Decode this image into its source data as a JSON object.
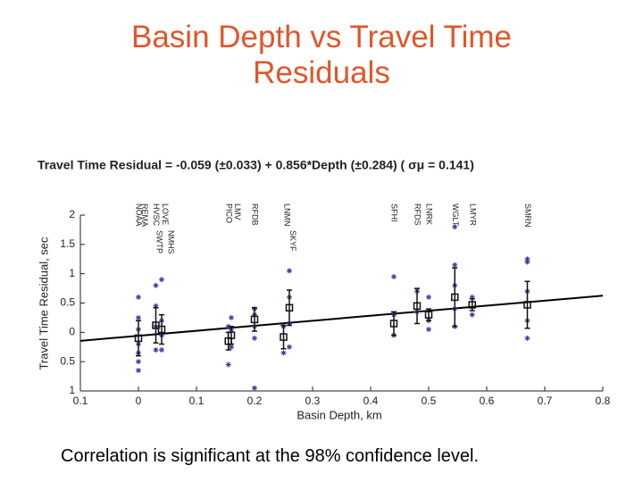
{
  "chart_data": {
    "type": "scatter",
    "title": [
      "Basin Depth vs Travel Time",
      "Residuals"
    ],
    "subtitle": "Travel Time Residual = -0.059 (±0.033) + 0.856*Depth (±0.284)  ( σμ = 0.141)",
    "xlabel": "Basin Depth, km",
    "ylabel": "Travel Time Residual, sec",
    "footnote": "Correlation is significant at the 98% confidence level.",
    "xlim": [
      -0.1,
      0.8
    ],
    "ylim": [
      -1,
      2
    ],
    "xticks": [
      {
        "value": -0.1,
        "label": "0.1"
      },
      0,
      0.1,
      0.2,
      0.3,
      0.4,
      0.5,
      0.6,
      0.7,
      0.8
    ],
    "yticks": [
      {
        "value": -1,
        "label": "1"
      },
      {
        "value": -0.5,
        "label": "0.5"
      },
      0,
      0.5,
      1,
      1.5,
      2
    ],
    "fit": {
      "intercept": -0.059,
      "slope": 0.856
    },
    "stations": [
      {
        "name": "NOAA",
        "x": 0
      },
      {
        "name": "HVSC",
        "x": 0.03
      },
      {
        "name": "REMA",
        "x": 0.01
      },
      {
        "name": "LOVE",
        "x": 0.045
      },
      {
        "name": "SWTP",
        "x": 0.035
      },
      {
        "name": "NMHS",
        "x": 0.055
      },
      {
        "name": "PICO",
        "x": 0.155
      },
      {
        "name": "LMV",
        "x": 0.17
      },
      {
        "name": "RFDB",
        "x": 0.2
      },
      {
        "name": "LNMN",
        "x": 0.255
      },
      {
        "name": "SKYF",
        "x": 0.265
      },
      {
        "name": "SFHI",
        "x": 0.44
      },
      {
        "name": "RFDS",
        "x": 0.48
      },
      {
        "name": "LNRK",
        "x": 0.5
      },
      {
        "name": "WGLT",
        "x": 0.545
      },
      {
        "name": "LMYR",
        "x": 0.575
      },
      {
        "name": "SMRN",
        "x": 0.67
      }
    ],
    "points": {
      "color": "#3a3aa0",
      "x": [
        0,
        0,
        0,
        0,
        0,
        0,
        0,
        0.03,
        0.03,
        0.03,
        0.03,
        0.04,
        0.04,
        0.04,
        0.04,
        0.155,
        0.155,
        0.16,
        0.16,
        0.16,
        0.2,
        0.2,
        0.2,
        0.2,
        0.2,
        0.25,
        0.25,
        0.26,
        0.26,
        0.26,
        0.26,
        0.44,
        0.44,
        0.44,
        0.48,
        0.48,
        0.5,
        0.5,
        0.5,
        0.545,
        0.545,
        0.545,
        0.545,
        0.545,
        0.575,
        0.575,
        0.67,
        0.67,
        0.67,
        0.67,
        0.67
      ],
      "values": [
        0.6,
        0.25,
        0.05,
        -0.2,
        -0.35,
        -0.5,
        -0.65,
        0.8,
        0.45,
        0.1,
        -0.3,
        0.9,
        0.2,
        -0.05,
        -0.3,
        0.1,
        -0.55,
        0.25,
        0.05,
        -0.25,
        0.4,
        0.3,
        0.1,
        -0.1,
        -0.95,
        0.1,
        -0.35,
        1.05,
        0.6,
        0.15,
        -0.25,
        0.95,
        0.3,
        -0.05,
        0.7,
        0.35,
        0.6,
        0.2,
        0.05,
        1.8,
        1.15,
        0.8,
        0.4,
        0.1,
        0.6,
        0.3,
        1.25,
        1.2,
        0.7,
        0.2,
        -0.1
      ]
    },
    "means": {
      "color": "#111",
      "x": [
        0,
        0.03,
        0.04,
        0.155,
        0.16,
        0.2,
        0.25,
        0.26,
        0.44,
        0.48,
        0.5,
        0.545,
        0.575,
        0.67
      ],
      "values": [
        -0.1,
        0.12,
        0.05,
        -0.15,
        -0.05,
        0.22,
        -0.08,
        0.42,
        0.15,
        0.45,
        0.3,
        0.6,
        0.47,
        0.47
      ],
      "errors": [
        0.3,
        0.3,
        0.25,
        0.15,
        0.15,
        0.2,
        0.2,
        0.3,
        0.2,
        0.3,
        0.1,
        0.5,
        0.1,
        0.4
      ]
    }
  }
}
